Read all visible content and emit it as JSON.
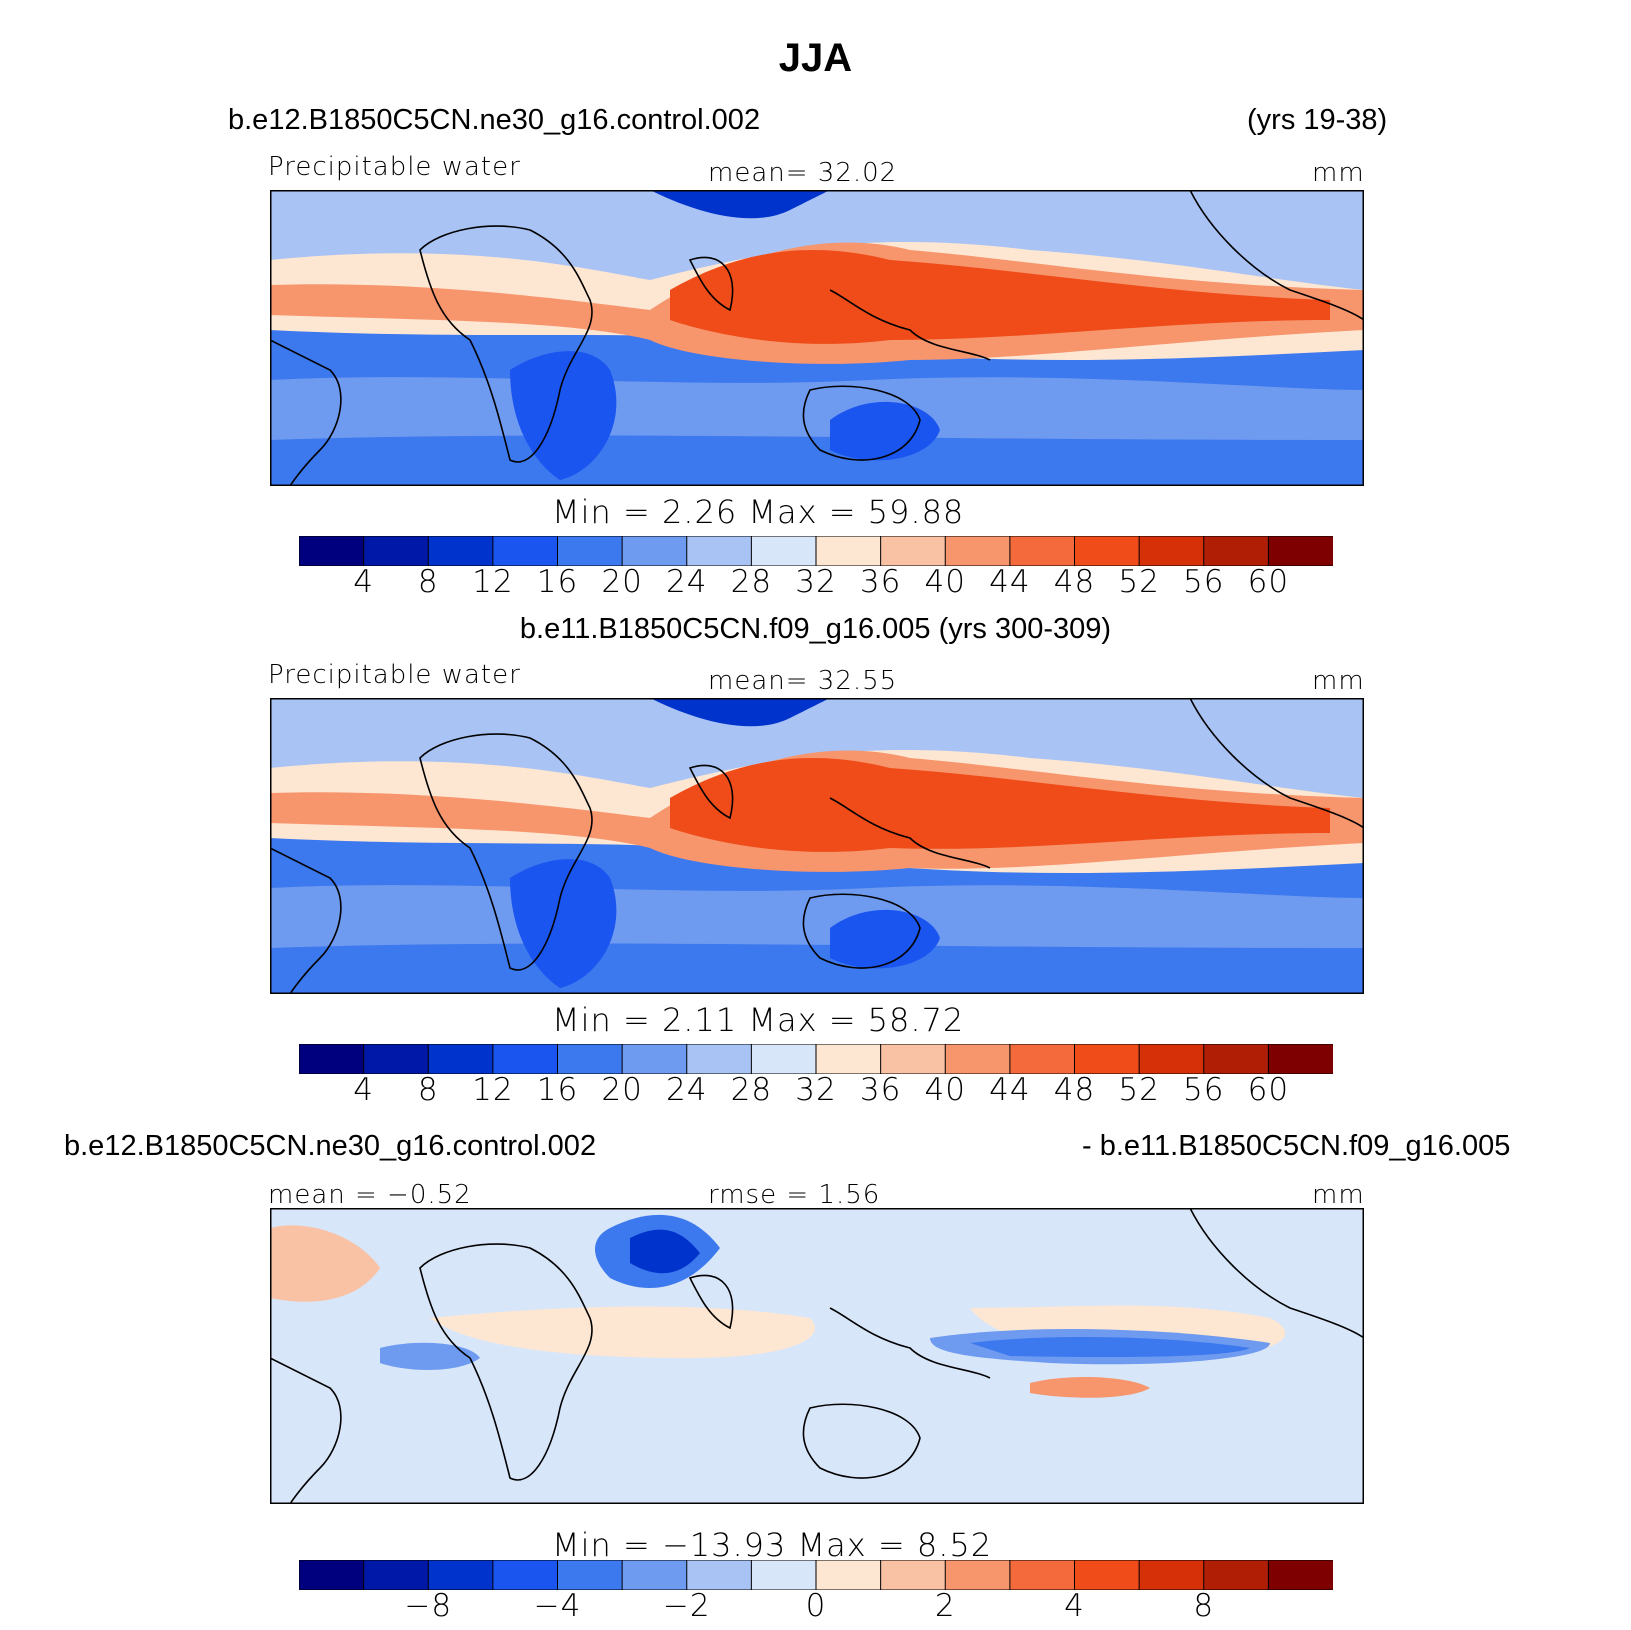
{
  "title": "JJA",
  "colors": {
    "palette": [
      "#00007f",
      "#0018a8",
      "#0033cc",
      "#1a55f0",
      "#3c78ee",
      "#6e9af0",
      "#a9c3f5",
      "#d8e6fa",
      "#fde6d2",
      "#f9c2a4",
      "#f7956d",
      "#f46a3d",
      "#ef4c1a",
      "#d63008",
      "#b01e05",
      "#7f0000"
    ],
    "coastline": "#000000"
  },
  "panels": [
    {
      "run_left": "b.e12.B1850C5CN.ne30_g16.control.002",
      "run_right": "(yrs 19-38)",
      "variable": "Precipitable water",
      "stat": "mean=   32.02",
      "units": "mm",
      "minmax": "Min =    2.26  Max =   59.88",
      "colorbar_ticks": [
        "4",
        "8",
        "12",
        "16",
        "20",
        "24",
        "28",
        "32",
        "36",
        "40",
        "44",
        "48",
        "52",
        "56",
        "60"
      ]
    },
    {
      "run_center": "b.e11.B1850C5CN.f09_g16.005 (yrs 300-309)",
      "variable": "Precipitable water",
      "stat": "mean=   32.55",
      "units": "mm",
      "minmax": "Min =    2.11  Max =   58.72",
      "colorbar_ticks": [
        "4",
        "8",
        "12",
        "16",
        "20",
        "24",
        "28",
        "32",
        "36",
        "40",
        "44",
        "48",
        "52",
        "56",
        "60"
      ]
    },
    {
      "run_left": "b.e12.B1850C5CN.ne30_g16.control.002",
      "run_right": "- b.e11.B1850C5CN.f09_g16.005",
      "stat_left": "mean =  −0.52",
      "stat_center": "rmse =    1.56",
      "units": "mm",
      "minmax": "Min = −13.93  Max =    8.52",
      "colorbar_ticks": [
        "−8",
        "−4",
        "−2",
        "0",
        "2",
        "4",
        "8"
      ]
    }
  ],
  "chart_data": [
    {
      "type": "heatmap",
      "title": "Precipitable water",
      "subtitle": "b.e12.B1850C5CN.ne30_g16.control.002 (yrs 19-38)",
      "units": "mm",
      "mean": 32.02,
      "min": 2.26,
      "max": 59.88,
      "levels": [
        4,
        8,
        12,
        16,
        20,
        24,
        28,
        32,
        36,
        40,
        44,
        48,
        52,
        56,
        60
      ]
    },
    {
      "type": "heatmap",
      "title": "Precipitable water",
      "subtitle": "b.e11.B1850C5CN.f09_g16.005 (yrs 300-309)",
      "units": "mm",
      "mean": 32.55,
      "min": 2.11,
      "max": 58.72,
      "levels": [
        4,
        8,
        12,
        16,
        20,
        24,
        28,
        32,
        36,
        40,
        44,
        48,
        52,
        56,
        60
      ]
    },
    {
      "type": "heatmap",
      "subtitle": "b.e12.B1850C5CN.ne30_g16.control.002 - b.e11.B1850C5CN.f09_g16.005",
      "units": "mm",
      "mean": -0.52,
      "rmse": 1.56,
      "min": -13.93,
      "max": 8.52,
      "levels": [
        -8,
        -4,
        -2,
        0,
        2,
        4,
        8
      ]
    }
  ]
}
